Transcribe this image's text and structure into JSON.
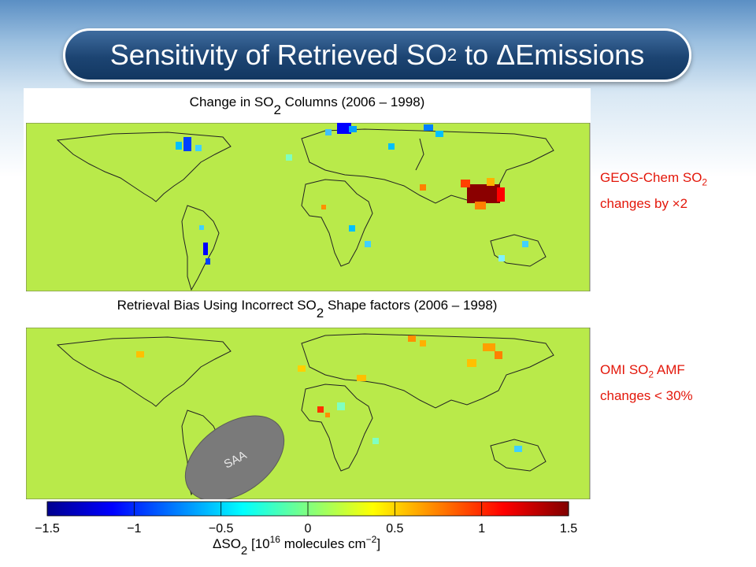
{
  "slide": {
    "title_main": "Sensitivity of Retrieved SO",
    "title_sub": "2",
    "title_tail": " to ΔEmissions"
  },
  "panels": {
    "top": {
      "title_pre": "Change in SO",
      "title_sub": "2",
      "title_post": " Columns (2006 – 1998)"
    },
    "bottom": {
      "title_pre": "Retrieval Bias Using Incorrect SO",
      "title_sub": "2",
      "title_post": " Shape factors (2006 – 1998)",
      "saa_label": "SAA"
    }
  },
  "notes": {
    "top_line1_pre": "GEOS-Chem SO",
    "top_line1_sub": "2",
    "top_line2": "changes by ×2",
    "bottom_line1_pre": "OMI SO",
    "bottom_line1_sub": "2",
    "bottom_line1_post": " AMF",
    "bottom_line2": "changes < 30%"
  },
  "colorbar": {
    "label_pre": "ΔSO",
    "label_sub": "2",
    "label_mid": " [10",
    "label_exp": "16",
    "label_units": " molecules cm",
    "label_exp2": "−2",
    "label_end": "]"
  },
  "colors": {
    "background_map": "#b9ea4a",
    "title_bar": "#1c4472",
    "note_red": "#e3170a",
    "saa_fill": "#7a7a7a"
  },
  "chart_data": {
    "type": "heatmap",
    "colorbar_ticks": [
      "−1.5",
      "−1",
      "−0.5",
      "0",
      "0.5",
      "1",
      "1.5"
    ],
    "colorbar_values": [
      -1.5,
      -1,
      -0.5,
      0,
      0.5,
      1,
      1.5
    ],
    "vmin": -1.5,
    "vmax": 1.5,
    "colormap": [
      "#00008f",
      "#0000ff",
      "#0080ff",
      "#00ffff",
      "#80ff80",
      "#ffff00",
      "#ff8000",
      "#ff0000",
      "#800000"
    ]
  }
}
